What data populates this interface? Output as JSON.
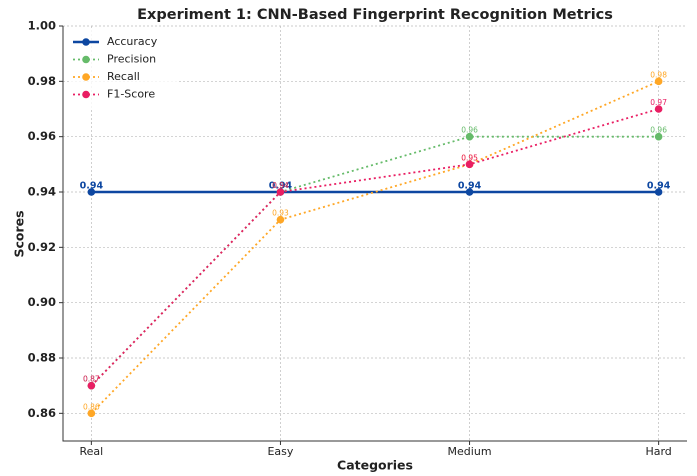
{
  "chart_data": {
    "type": "line",
    "title": "Experiment 1: CNN-Based Fingerprint Recognition Metrics",
    "xlabel": "Categories",
    "ylabel": "Scores",
    "categories": [
      "Real",
      "Easy",
      "Medium",
      "Hard"
    ],
    "series": [
      {
        "name": "Accuracy",
        "color": "#0d47a1",
        "linestyle": "solid",
        "values": [
          0.94,
          0.94,
          0.94,
          0.94
        ]
      },
      {
        "name": "Precision",
        "color": "#66bb6a",
        "linestyle": "dotted",
        "values": [
          0.87,
          0.94,
          0.96,
          0.96
        ]
      },
      {
        "name": "Recall",
        "color": "#ffa726",
        "linestyle": "dotted",
        "values": [
          0.86,
          0.93,
          0.95,
          0.98
        ]
      },
      {
        "name": "F1-Score",
        "color": "#e91e63",
        "linestyle": "dotted",
        "values": [
          0.87,
          0.94,
          0.95,
          0.97
        ]
      }
    ],
    "ylim": [
      0.85,
      1.0
    ],
    "yticks": [
      0.86,
      0.88,
      {
        "value": 0.9,
        "label": "0.90"
      },
      0.92,
      0.94,
      0.96,
      0.98,
      {
        "value": 1.0,
        "label": "1.00"
      }
    ],
    "grid": true,
    "legend": "upper left"
  }
}
